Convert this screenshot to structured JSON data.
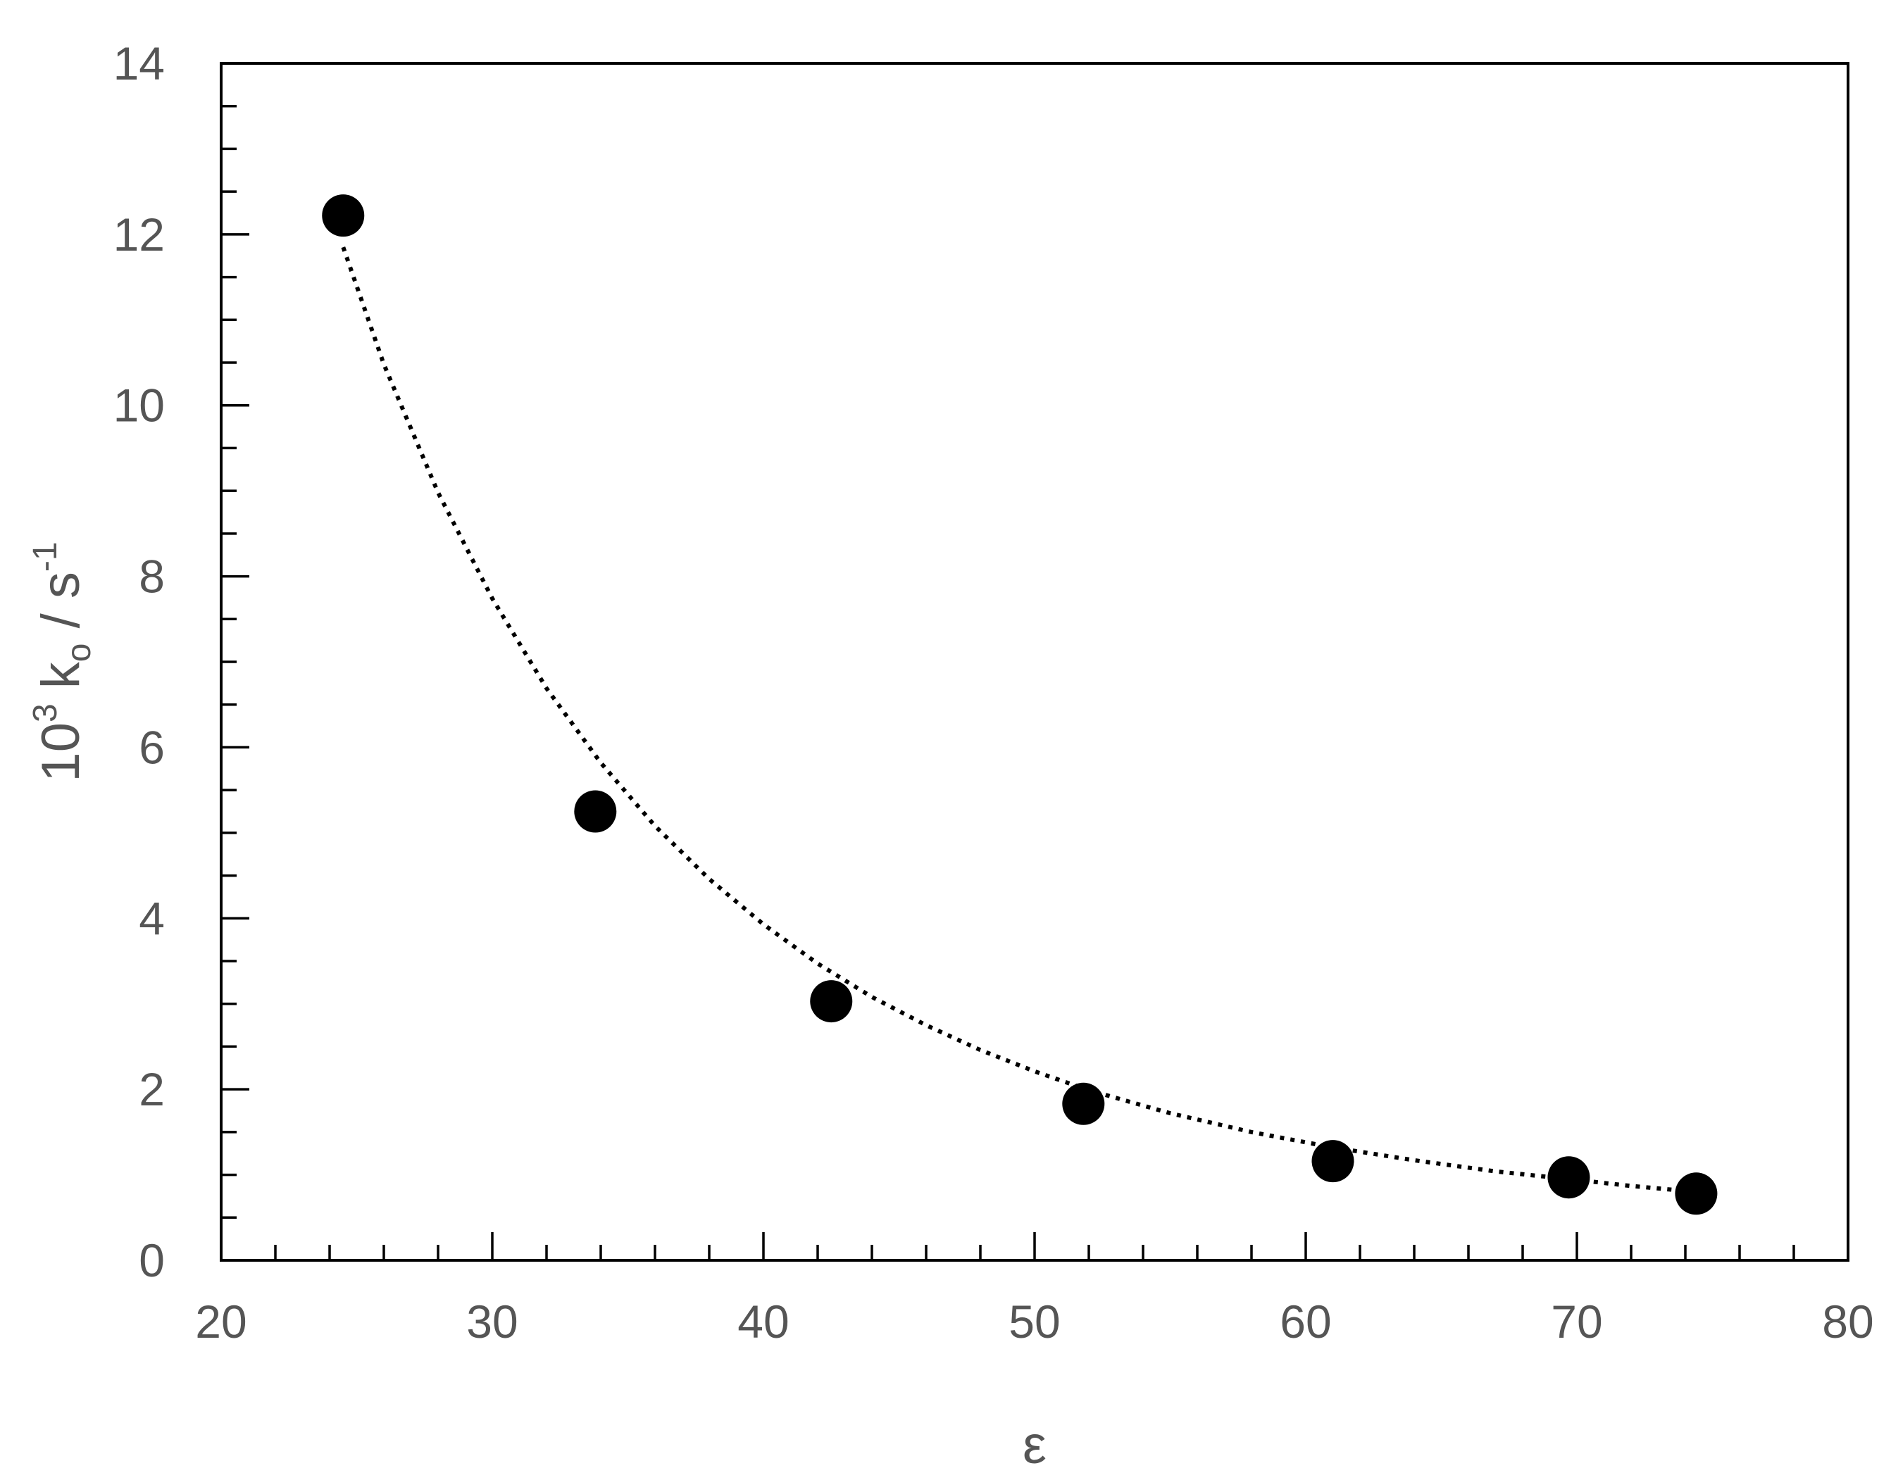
{
  "chart_data": {
    "type": "scatter",
    "series": [
      {
        "x": [
          24.5,
          33.8,
          42.5,
          51.8,
          61.0,
          69.7,
          74.4
        ],
        "y": [
          12.22,
          5.25,
          3.03,
          1.83,
          1.16,
          0.97,
          0.78
        ]
      }
    ],
    "fit_curve": {
      "style": "dotted",
      "x": [
        24.5,
        26,
        28,
        30,
        32,
        34,
        36,
        38,
        40,
        42,
        44,
        46,
        48,
        50,
        52,
        55,
        58,
        61,
        64,
        67,
        70,
        72,
        74.4
      ],
      "y": [
        11.85,
        10.48,
        8.98,
        7.74,
        6.69,
        5.82,
        5.08,
        4.46,
        3.93,
        3.47,
        3.08,
        2.75,
        2.46,
        2.21,
        1.99,
        1.72,
        1.5,
        1.32,
        1.17,
        1.04,
        0.94,
        0.87,
        0.8
      ]
    },
    "xlabel": "ε",
    "ylabel_parts": [
      "10",
      "3",
      " k",
      "o",
      " / s",
      "-1"
    ],
    "xlim": [
      20,
      80
    ],
    "ylim": [
      0,
      14
    ],
    "xticks": [
      20,
      30,
      40,
      50,
      60,
      70,
      80
    ],
    "yticks": [
      0,
      2,
      4,
      6,
      8,
      10,
      12,
      14
    ],
    "x_minor_step": 2,
    "y_minor_step": 0.5,
    "grid": false,
    "marker": "filled-circle",
    "marker_color": "#000000",
    "text_color": "#555555"
  }
}
